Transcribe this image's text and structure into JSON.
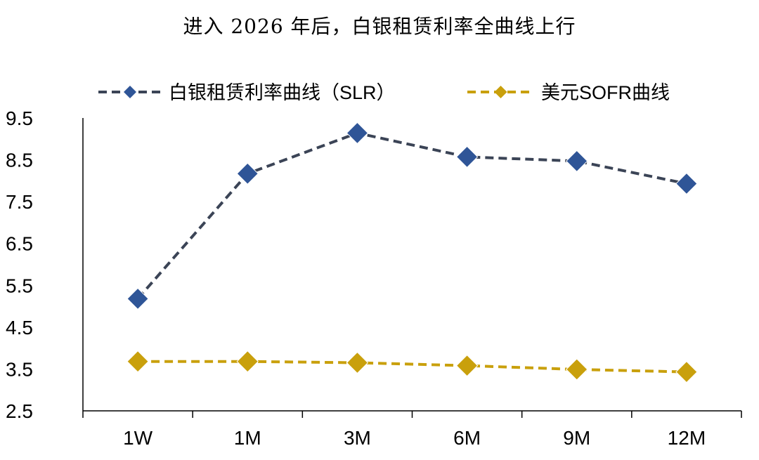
{
  "chart_data": {
    "type": "line",
    "title": "进入 2026 年后，白银租赁利率全曲线上行",
    "categories": [
      "1W",
      "1M",
      "3M",
      "6M",
      "9M",
      "12M"
    ],
    "series": [
      {
        "name": "白银租赁利率曲线（SLR）",
        "values": [
          5.18,
          8.17,
          9.14,
          8.57,
          8.47,
          7.93
        ],
        "color": "#2F5597",
        "line_color": "#3B4456"
      },
      {
        "name": "美元SOFR曲线",
        "values": [
          3.68,
          3.68,
          3.65,
          3.58,
          3.49,
          3.43
        ],
        "color": "#C9A00C",
        "line_color": "#C9A00C"
      }
    ],
    "ylim": [
      2.5,
      9.5
    ],
    "yticks": [
      "9.5",
      "8.5",
      "7.5",
      "6.5",
      "5.5",
      "4.5",
      "3.5",
      "2.5"
    ],
    "xlabel": "",
    "ylabel": "",
    "grid": false,
    "legend": "top"
  }
}
